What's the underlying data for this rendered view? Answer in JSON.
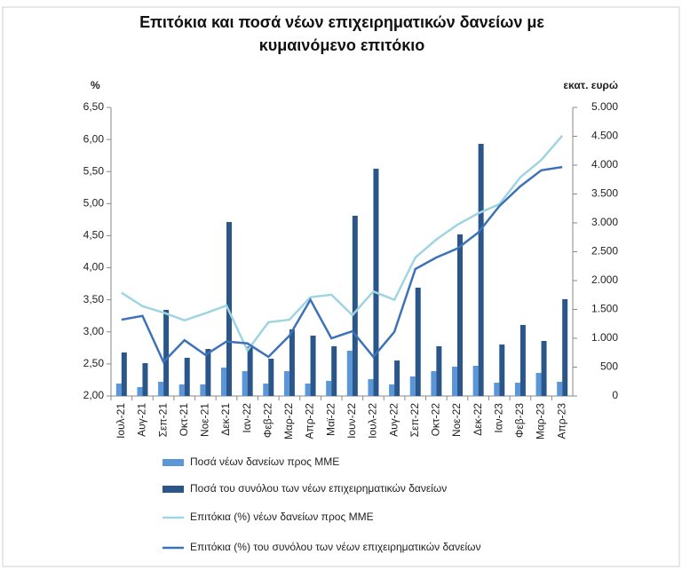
{
  "chart_data": {
    "type": "bar-line",
    "title": "Επιτόκια και ποσά νέων επιχειρηματικών δανείων με κυμαινόμενο επιτόκιο",
    "y_label": "%",
    "y2_label": "εκατ. ευρώ",
    "categories": [
      "Ιουλ-21",
      "Αυγ-21",
      "Σεπ-21",
      "Οκτ-21",
      "Νοε-21",
      "Δεκ-21",
      "Ιαν-22",
      "Φεβ-22",
      "Μαρ-22",
      "Απρ-22",
      "Μαϊ-22",
      "Ιουν-22",
      "Ιουλ-22",
      "Αυγ-22",
      "Σεπ-22",
      "Οκτ-22",
      "Νοε-22",
      "Δεκ-22",
      "Ιαν-23",
      "Φεβ-23",
      "Μαρ-23",
      "Απρ-23"
    ],
    "series": [
      {
        "name": "Ποσά νέων δανείων προς ΜΜΕ",
        "type": "bar",
        "axis": "y2",
        "color": "#5a96d8",
        "values": [
          215,
          154,
          246,
          200,
          200,
          492,
          430,
          215,
          430,
          215,
          262,
          785,
          292,
          200,
          338,
          430,
          508,
          523,
          230,
          230,
          400,
          246
        ]
      },
      {
        "name": "Ποσά του συνόλου των νέων επιχειρηματικών δανείων",
        "type": "bar",
        "axis": "y2",
        "color": "#2b5689",
        "values": [
          754,
          569,
          1492,
          662,
          815,
          3015,
          862,
          646,
          1154,
          1046,
          862,
          3123,
          3938,
          615,
          1877,
          862,
          2800,
          4369,
          892,
          1231,
          954,
          1677
        ]
      },
      {
        "name": "Επιτόκια (%) νέων δανείων προς ΜΜΕ",
        "type": "line",
        "color": "#9fd4e2",
        "values": [
          3.61,
          3.4,
          3.3,
          3.18,
          3.29,
          3.41,
          2.71,
          3.15,
          3.19,
          3.54,
          3.58,
          3.26,
          3.63,
          3.5,
          4.16,
          4.44,
          4.67,
          4.85,
          4.99,
          5.41,
          5.68,
          6.06
        ]
      },
      {
        "name": "Επιτόκια (%) του συνόλου των νέων επιχειρηματικών δανείων",
        "type": "line",
        "color": "#3d72b9",
        "values": [
          3.19,
          3.25,
          2.53,
          2.87,
          2.64,
          2.85,
          2.82,
          2.61,
          2.94,
          3.5,
          2.9,
          3.01,
          2.61,
          3.0,
          3.98,
          4.16,
          4.3,
          4.55,
          4.96,
          5.27,
          5.52,
          5.57
        ]
      }
    ],
    "ylim": [
      2.0,
      6.5
    ],
    "yticks": [
      {
        "value": 2.0,
        "label": "2,00"
      },
      {
        "value": 2.5,
        "label": "2,50"
      },
      {
        "value": 3.0,
        "label": "3,00"
      },
      {
        "value": 3.5,
        "label": "3,50"
      },
      {
        "value": 4.0,
        "label": "4,00"
      },
      {
        "value": 4.5,
        "label": "4,50"
      },
      {
        "value": 5.0,
        "label": "5,00"
      },
      {
        "value": 5.5,
        "label": "5,50"
      },
      {
        "value": 6.0,
        "label": "6,00"
      },
      {
        "value": 6.5,
        "label": "6,50"
      }
    ],
    "y2lim": [
      0,
      5000
    ],
    "y2ticks": [
      0,
      500,
      {
        "value": 1000,
        "label": "1.000"
      },
      {
        "value": 1500,
        "label": "1.500"
      },
      {
        "value": 2000,
        "label": "2.000"
      },
      {
        "value": 2500,
        "label": "2.500"
      },
      {
        "value": 3000,
        "label": "3.000"
      },
      {
        "value": 3500,
        "label": "3.500"
      },
      {
        "value": 4000,
        "label": "4.000"
      },
      {
        "value": 4500,
        "label": "4.500"
      },
      {
        "value": 5000,
        "label": "5.000"
      }
    ],
    "legend": "bottom"
  }
}
